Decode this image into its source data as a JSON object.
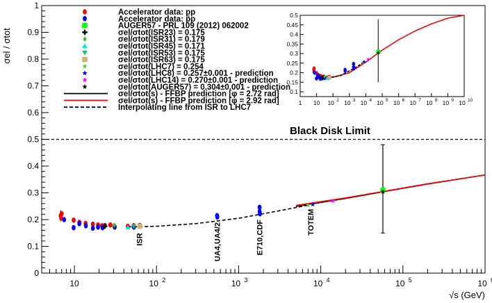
{
  "chart_data": {
    "type": "scatter",
    "ylabel": "σel / σtot",
    "xlabel": "√s (GeV)",
    "x_scale": "log",
    "xlim": [
      4,
      1000000
    ],
    "ylim": [
      0,
      1
    ],
    "grid": false,
    "legend_position": "top-left",
    "x_ticks": [
      {
        "value": 10,
        "base": "10",
        "exp": ""
      },
      {
        "value": 100,
        "base": "10",
        "exp": "2"
      },
      {
        "value": 1000,
        "base": "10",
        "exp": "3"
      },
      {
        "value": 10000,
        "base": "10",
        "exp": "4"
      },
      {
        "value": 100000,
        "base": "10",
        "exp": "5"
      },
      {
        "value": 1000000,
        "base": "10",
        "exp": "6"
      }
    ],
    "y_ticks": [
      "0",
      "0.1",
      "0.2",
      "0.3",
      "0.4",
      "0.5",
      "0.6",
      "0.7",
      "0.8",
      "0.9",
      "1"
    ],
    "black_disk": {
      "y": 0.5,
      "label": "Black Disk Limit"
    },
    "annotations": [
      {
        "text": "ISR",
        "x": 62,
        "y": 0.15
      },
      {
        "text": "UA4,UA4/2",
        "x": 546,
        "y": 0.19
      },
      {
        "text": "E710,CDF",
        "x": 1800,
        "y": 0.2
      },
      {
        "text": "TOTEM",
        "x": 7500,
        "y": 0.24
      }
    ],
    "legend": [
      {
        "label": "Accelerator data: pp",
        "marker": "circle",
        "color": "#ff0000"
      },
      {
        "label": "Accelerator data: p̄p",
        "marker": "circle",
        "color": "#0000ff"
      },
      {
        "label": "AUGER57 - PRL 109 (2012) 062002",
        "marker": "square",
        "color": "#00ff00"
      },
      {
        "label": "σel/σtot(ISR23) = 0.175",
        "marker": "cross",
        "color": "#000000"
      },
      {
        "label": "σel/σtot(ISR31) = 0.179",
        "marker": "diamond",
        "color": "#22cc22"
      },
      {
        "label": "σel/σtot(ISR45) = 0.171",
        "marker": "triangle-up",
        "color": "#00e5e5"
      },
      {
        "label": "σel/σtot(ISR53) = 0.175",
        "marker": "triangle-down",
        "color": "#00cc66"
      },
      {
        "label": "σel/σtot(ISR63) = 0.175",
        "marker": "square",
        "color": "#cdb27a"
      },
      {
        "label": "σel/σtot(LHC7) = 0.254",
        "marker": "star",
        "color": "#55cc55"
      },
      {
        "label": "σel/σtot(LHC8) = 0.257±0.001 - prediction",
        "marker": "star",
        "color": "#0000ff"
      },
      {
        "label": "σel/σtot(LHC14) = 0.270±0.001 - prediction",
        "marker": "star",
        "color": "#ff00ff"
      },
      {
        "label": "σel/σtot(AUGER57) = 0.304±0.001 - prediction",
        "marker": "star",
        "color": "#000000"
      },
      {
        "label": "σel/σtot(s) - FFBP prediction [φ = 2.72 rad]",
        "marker": "line",
        "color": "#000000"
      },
      {
        "label": "σel/σtot(s) - FFBP prediction [φ = 2.92 rad]",
        "marker": "line",
        "color": "#ff0000"
      },
      {
        "label": "Interpolating line from ISR to LHC7",
        "marker": "dashed",
        "color": "#000000"
      }
    ],
    "series": [
      {
        "name": "Accelerator data: pp",
        "points": [
          {
            "x": 6.8,
            "y": 0.215,
            "err": 0.02
          },
          {
            "x": 6.9,
            "y": 0.205
          },
          {
            "x": 7.0,
            "y": 0.222
          },
          {
            "x": 9.8,
            "y": 0.198
          },
          {
            "x": 11.5,
            "y": 0.19
          },
          {
            "x": 13.7,
            "y": 0.186
          },
          {
            "x": 16.8,
            "y": 0.183
          },
          {
            "x": 19.4,
            "y": 0.18
          },
          {
            "x": 21.7,
            "y": 0.177
          },
          {
            "x": 23.5,
            "y": 0.178
          },
          {
            "x": 27.4,
            "y": 0.18
          },
          {
            "x": 30.6,
            "y": 0.176
          },
          {
            "x": 44.7,
            "y": 0.175
          },
          {
            "x": 52.8,
            "y": 0.177
          },
          {
            "x": 62.5,
            "y": 0.178
          }
        ]
      },
      {
        "name": "Accelerator data: p̄p",
        "points": [
          {
            "x": 7.5,
            "y": 0.2
          },
          {
            "x": 9.8,
            "y": 0.17
          },
          {
            "x": 11.5,
            "y": 0.185
          },
          {
            "x": 13.8,
            "y": 0.177
          },
          {
            "x": 16.8,
            "y": 0.168
          },
          {
            "x": 19.4,
            "y": 0.172
          },
          {
            "x": 22.0,
            "y": 0.17
          },
          {
            "x": 31.0,
            "y": 0.172
          },
          {
            "x": 53.0,
            "y": 0.172
          },
          {
            "x": 546,
            "y": 0.215
          },
          {
            "x": 550,
            "y": 0.21
          },
          {
            "x": 1800,
            "y": 0.23
          },
          {
            "x": 1800,
            "y": 0.246
          },
          {
            "x": 1820,
            "y": 0.222
          }
        ]
      },
      {
        "name": "AUGER57",
        "points": [
          {
            "x": 57000,
            "y": 0.31,
            "err_low": 0.16,
            "err_high": 0.17
          }
        ]
      },
      {
        "name": "ISR23",
        "points": [
          {
            "x": 23.5,
            "y": 0.175
          }
        ]
      },
      {
        "name": "ISR31",
        "points": [
          {
            "x": 30.6,
            "y": 0.179
          }
        ]
      },
      {
        "name": "ISR45",
        "points": [
          {
            "x": 44.7,
            "y": 0.171
          }
        ]
      },
      {
        "name": "ISR53",
        "points": [
          {
            "x": 52.8,
            "y": 0.175
          }
        ]
      },
      {
        "name": "ISR63",
        "points": [
          {
            "x": 62.5,
            "y": 0.175
          }
        ]
      },
      {
        "name": "LHC7",
        "points": [
          {
            "x": 7000,
            "y": 0.254
          }
        ]
      },
      {
        "name": "LHC8",
        "points": [
          {
            "x": 8000,
            "y": 0.257
          }
        ]
      },
      {
        "name": "LHC14",
        "points": [
          {
            "x": 14000,
            "y": 0.27
          }
        ]
      },
      {
        "name": "AUGER57 prediction",
        "points": [
          {
            "x": 57000,
            "y": 0.304
          }
        ]
      }
    ],
    "curve_black": {
      "x": [
        5000,
        20000,
        57000,
        200000,
        1000000
      ],
      "y": [
        0.249,
        0.279,
        0.304,
        0.333,
        0.367
      ]
    },
    "curve_red": {
      "x": [
        5000,
        20000,
        57000,
        200000,
        1000000
      ],
      "y": [
        0.253,
        0.281,
        0.305,
        0.334,
        0.367
      ]
    },
    "interp_line": {
      "x": [
        45,
        100,
        300,
        1000,
        3000,
        7000
      ],
      "y": [
        0.173,
        0.175,
        0.185,
        0.205,
        0.232,
        0.254
      ]
    },
    "inset": {
      "xlim": [
        1,
        10000000000
      ],
      "ylim": [
        0.0,
        0.5
      ],
      "x_ticks": [
        {
          "value": 1,
          "base": "1",
          "exp": ""
        },
        {
          "value": 10,
          "base": "10",
          "exp": ""
        },
        {
          "value": 100,
          "base": "10",
          "exp": "2"
        },
        {
          "value": 1000,
          "base": "10",
          "exp": "3"
        },
        {
          "value": 10000,
          "base": "10",
          "exp": "4"
        },
        {
          "value": 100000,
          "base": "10",
          "exp": "5"
        },
        {
          "value": 1000000,
          "base": "10",
          "exp": "6"
        },
        {
          "value": 10000000,
          "base": "10",
          "exp": "7"
        },
        {
          "value": 100000000,
          "base": "10",
          "exp": "8"
        },
        {
          "value": 1000000000,
          "base": "10",
          "exp": "9"
        },
        {
          "value": 10000000000,
          "base": "10",
          "exp": "10"
        }
      ],
      "y_ticks": [
        "0.1",
        "0.15",
        "0.2",
        "0.25",
        "0.3",
        "0.35",
        "0.4",
        "0.45",
        "0.5"
      ],
      "curve_red": {
        "x": [
          10,
          30,
          100,
          1000,
          10000,
          100000,
          1000000,
          10000000,
          100000000,
          1000000000,
          10000000000
        ],
        "y": [
          0.185,
          0.175,
          0.176,
          0.2,
          0.255,
          0.318,
          0.372,
          0.418,
          0.455,
          0.485,
          0.5
        ]
      }
    }
  }
}
